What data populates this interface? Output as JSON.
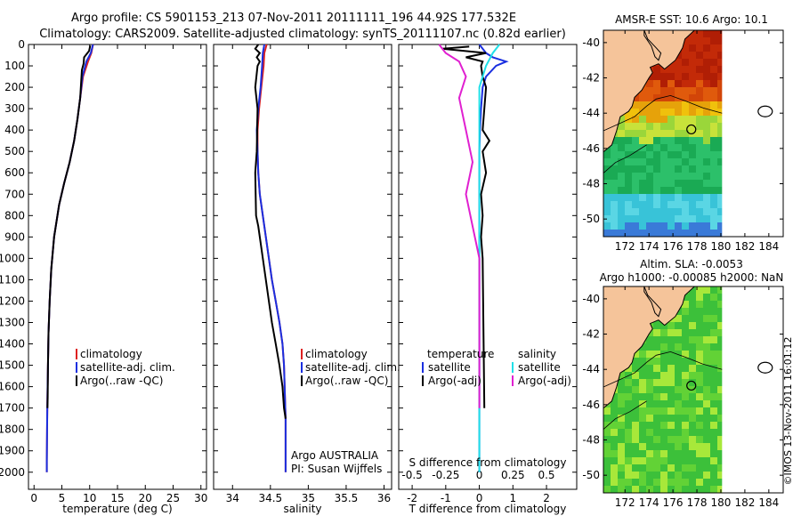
{
  "header": {
    "line1": "Argo profile: CS 5901153_213 07-Nov-2011 20111111_196 44.92S 177.532E",
    "line2": "Climatology: CARS2009. Satellite-adjusted climatology: synTS_20111107.nc (0.82d earlier)"
  },
  "colors": {
    "climatology": "#dd2020",
    "satellite": "#1a2fe0",
    "argo": "#000000",
    "sal_satellite": "#20e0e8",
    "sal_argo": "#e020d0"
  },
  "chart_data": [
    {
      "type": "line",
      "name": "temperature-profile",
      "xlabel": "temperature (deg C)",
      "ylabel": "",
      "xlim": [
        -1,
        31
      ],
      "ylim": [
        0,
        2080
      ],
      "xticks": [
        "0",
        "5",
        "10",
        "15",
        "20",
        "25",
        "30"
      ],
      "yticks": [
        "0",
        "100",
        "200",
        "300",
        "400",
        "500",
        "600",
        "700",
        "800",
        "900",
        "1000",
        "1100",
        "1200",
        "1300",
        "1400",
        "1500",
        "1600",
        "1700",
        "1800",
        "1900",
        "2000"
      ],
      "legend": [
        "climatology",
        "satellite-adj. clim.",
        "Argo(..raw -QC)"
      ],
      "series": [
        {
          "name": "climatology",
          "color": "#dd2020",
          "x": [
            10.6,
            10.3,
            9.7,
            8.8,
            8.3,
            7.8,
            7.2,
            6.4,
            5.4,
            4.5,
            3.6,
            3.1,
            2.8,
            2.6,
            2.5,
            2.4,
            2.35,
            2.3,
            2.3
          ],
          "y": [
            0,
            40,
            80,
            150,
            250,
            350,
            450,
            550,
            650,
            750,
            900,
            1050,
            1200,
            1350,
            1500,
            1650,
            1800,
            1950,
            2000
          ]
        },
        {
          "name": "satellite-adj. clim.",
          "color": "#1a2fe0",
          "x": [
            10.6,
            10.2,
            9.4,
            8.7,
            8.3,
            7.8,
            7.2,
            6.4,
            5.4,
            4.5,
            3.6,
            3.1,
            2.8,
            2.6,
            2.5,
            2.4,
            2.35,
            2.3,
            2.3
          ],
          "y": [
            0,
            40,
            80,
            150,
            250,
            350,
            450,
            550,
            650,
            750,
            900,
            1050,
            1200,
            1350,
            1500,
            1650,
            1800,
            1950,
            2000
          ]
        },
        {
          "name": "Argo",
          "color": "#000000",
          "x": [
            10.1,
            9.9,
            9.0,
            8.9,
            8.6,
            8.3,
            7.8,
            7.2,
            6.4,
            5.4,
            4.5,
            3.6,
            3.1,
            2.8,
            2.6,
            2.5,
            2.45,
            2.4
          ],
          "y": [
            5,
            30,
            60,
            90,
            120,
            250,
            350,
            450,
            550,
            650,
            750,
            900,
            1050,
            1200,
            1350,
            1500,
            1650,
            1700
          ]
        }
      ]
    },
    {
      "type": "line",
      "name": "salinity-profile",
      "xlabel": "salinity",
      "ylabel": "",
      "xlim": [
        33.75,
        36.1
      ],
      "ylim": [
        0,
        2080
      ],
      "xticks": [
        "34",
        "34.5",
        "35",
        "35.5",
        "36"
      ],
      "legend": [
        "climatology",
        "satellite-adj. clim.",
        "Argo(..raw -QC)"
      ],
      "annotation": [
        "Argo AUSTRALIA",
        "PI: Susan Wijffels"
      ],
      "series": [
        {
          "name": "climatology",
          "color": "#dd2020",
          "x": [
            34.45,
            34.42,
            34.41,
            34.38,
            34.35,
            34.33,
            34.33,
            34.34,
            34.36,
            34.4,
            34.44,
            34.48,
            34.52,
            34.57,
            34.62,
            34.66,
            34.68,
            34.7,
            34.7
          ],
          "y": [
            0,
            40,
            100,
            200,
            300,
            400,
            500,
            600,
            700,
            800,
            900,
            1000,
            1100,
            1200,
            1300,
            1400,
            1500,
            1750,
            2000
          ]
        },
        {
          "name": "satellite-adj. clim.",
          "color": "#1a2fe0",
          "x": [
            34.42,
            34.4,
            34.39,
            34.37,
            34.34,
            34.32,
            34.33,
            34.34,
            34.36,
            34.4,
            34.44,
            34.48,
            34.52,
            34.57,
            34.62,
            34.66,
            34.68,
            34.7,
            34.7
          ],
          "y": [
            0,
            40,
            100,
            200,
            300,
            400,
            500,
            600,
            700,
            800,
            900,
            1000,
            1100,
            1200,
            1300,
            1400,
            1500,
            1750,
            2000
          ]
        },
        {
          "name": "Argo",
          "color": "#000000",
          "x": [
            34.34,
            34.3,
            34.36,
            34.32,
            34.36,
            34.33,
            34.3,
            34.33,
            34.32,
            34.3,
            34.31,
            34.34,
            34.36,
            34.4,
            34.44,
            34.48,
            34.52,
            34.57,
            34.62,
            34.66,
            34.68,
            34.7
          ],
          "y": [
            0,
            20,
            40,
            60,
            80,
            100,
            200,
            300,
            500,
            600,
            800,
            850,
            900,
            1000,
            1100,
            1200,
            1300,
            1400,
            1500,
            1600,
            1700,
            1750
          ]
        }
      ]
    },
    {
      "type": "line",
      "name": "difference-profile",
      "xlabel_top": "S difference from climatology",
      "xlabel": "T difference from climatology",
      "xlim": [
        -2.4,
        2.9
      ],
      "ylim": [
        0,
        2080
      ],
      "xticks": [
        "-2",
        "-1",
        "0",
        "1",
        "2"
      ],
      "xticks_top": [
        "-0.5",
        "-0.25",
        "0",
        "0.25",
        "0.5"
      ],
      "legend_left_title": "temperature",
      "legend_left": [
        "satellite",
        "Argo(-adj)"
      ],
      "legend_right_title": "salinity",
      "legend_right": [
        "satellite",
        "Argo(-adj)"
      ],
      "series": [
        {
          "name": "T satellite",
          "color": "#1a2fe0",
          "x": [
            0.0,
            0.2,
            0.4,
            0.8,
            0.5,
            0.2,
            0.1,
            0.05,
            0.02,
            0,
            0,
            0,
            0,
            0,
            0,
            0
          ],
          "y": [
            0,
            40,
            60,
            80,
            100,
            150,
            200,
            300,
            400,
            500,
            700,
            900,
            1200,
            1500,
            1800,
            2000
          ]
        },
        {
          "name": "T Argo",
          "color": "#000000",
          "x": [
            -0.3,
            -1.1,
            0.2,
            -0.4,
            0.1,
            0.05,
            0.1,
            0.2,
            0.15,
            0.1,
            0.3,
            0.1,
            0.2,
            0.05,
            0.1,
            0.05,
            0.1,
            0.15
          ],
          "y": [
            10,
            20,
            40,
            60,
            80,
            100,
            150,
            200,
            300,
            400,
            450,
            500,
            600,
            700,
            800,
            900,
            1000,
            1700
          ]
        },
        {
          "name": "S satellite",
          "color": "#20e0e8",
          "x": [
            0.15,
            0.1,
            0.05,
            0,
            0,
            0,
            0,
            0,
            0,
            0
          ],
          "y": [
            0,
            40,
            100,
            200,
            400,
            600,
            900,
            1200,
            1600,
            2000
          ]
        },
        {
          "name": "S Argo",
          "color": "#e020d0",
          "x": [
            -0.3,
            -0.25,
            -0.15,
            -0.1,
            -0.15,
            -0.1,
            -0.05,
            -0.1,
            -0.05,
            0,
            0
          ],
          "y": [
            0,
            40,
            80,
            150,
            250,
            400,
            550,
            700,
            850,
            1000,
            1700
          ]
        }
      ]
    },
    {
      "type": "heatmap",
      "name": "sst-map",
      "title": "AMSR-E SST: 10.6 Argo: 10.1",
      "xticks": [
        "172",
        "174",
        "176",
        "178",
        "180",
        "182",
        "184"
      ],
      "yticks": [
        "-40",
        "-42",
        "-44",
        "-46",
        "-48",
        "-50"
      ],
      "xlim": [
        170.2,
        185.2
      ],
      "ylim": [
        -51,
        -39.3
      ],
      "marker": {
        "lon": 177.532,
        "lat": -44.92
      }
    },
    {
      "type": "heatmap",
      "name": "sla-map",
      "title_line1": "Altim. SLA: -0.0053",
      "title_line2": "Argo h1000: -0.00085 h2000: NaN",
      "xticks": [
        "172",
        "174",
        "176",
        "178",
        "180",
        "182",
        "184"
      ],
      "yticks": [
        "-40",
        "-42",
        "-44",
        "-46",
        "-48",
        "-50"
      ],
      "xlim": [
        170.2,
        185.2
      ],
      "ylim": [
        -51,
        -39.3
      ],
      "marker": {
        "lon": 177.532,
        "lat": -44.92
      }
    }
  ],
  "footer": {
    "credit": "©IMOS 13-Nov-2011 16:01:12"
  }
}
